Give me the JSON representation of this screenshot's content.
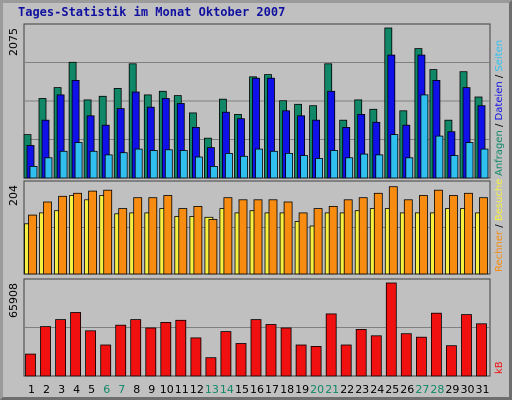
{
  "title": "Tages-Statistik im Monat Oktober 2007",
  "colors": {
    "background": "#c0c0c0",
    "anfragen": "#108868",
    "dateien": "#1010e8",
    "seiten": "#30c0f0",
    "besuche": "#f8f040",
    "rechner": "#f88c10",
    "kb": "#f01010",
    "weekday": "#000000",
    "weekend": "#108868"
  },
  "chart_data": [
    {
      "type": "bar",
      "panel": "top",
      "ymax_label": "2075",
      "ylim": [
        0,
        2075
      ],
      "side_labels": [
        {
          "text": "Anfragen",
          "color": "#108868"
        },
        {
          "text": " / ",
          "color": "#000000"
        },
        {
          "text": "Dateien",
          "color": "#1010e8"
        },
        {
          "text": " / ",
          "color": "#000000"
        },
        {
          "text": "Seiten",
          "color": "#30c0f0"
        }
      ],
      "categories": [
        "1",
        "2",
        "3",
        "4",
        "5",
        "6",
        "7",
        "8",
        "9",
        "10",
        "11",
        "12",
        "13",
        "14",
        "15",
        "16",
        "17",
        "18",
        "19",
        "20",
        "21",
        "22",
        "23",
        "24",
        "25",
        "26",
        "27",
        "28",
        "29",
        "30",
        "31"
      ],
      "series": [
        {
          "name": "Anfragen",
          "color": "#108868",
          "values": [
            600,
            1100,
            1250,
            1600,
            1080,
            1130,
            1240,
            1580,
            1150,
            1200,
            1140,
            900,
            550,
            1090,
            880,
            1400,
            1430,
            1070,
            1020,
            1000,
            1580,
            800,
            1080,
            950,
            2075,
            930,
            1790,
            1500,
            800,
            1470,
            1120
          ]
        },
        {
          "name": "Dateien",
          "color": "#1010e8",
          "values": [
            450,
            800,
            1150,
            1350,
            860,
            730,
            960,
            1190,
            980,
            1100,
            1030,
            700,
            420,
            910,
            820,
            1380,
            1380,
            930,
            860,
            800,
            1200,
            700,
            880,
            770,
            1700,
            730,
            1700,
            1350,
            640,
            1250,
            1000
          ]
        },
        {
          "name": "Seiten",
          "color": "#30c0f0",
          "values": [
            160,
            280,
            370,
            490,
            370,
            320,
            350,
            400,
            380,
            390,
            380,
            290,
            160,
            340,
            300,
            400,
            370,
            340,
            310,
            270,
            380,
            280,
            330,
            320,
            600,
            280,
            1150,
            580,
            310,
            490,
            400
          ]
        }
      ]
    },
    {
      "type": "bar",
      "panel": "middle",
      "ymax_label": "204",
      "ylim": [
        0,
        204
      ],
      "side_labels": [
        {
          "text": "Rechner",
          "color": "#f88c10"
        },
        {
          "text": " / ",
          "color": "#000000"
        },
        {
          "text": "Besuche",
          "color": "#f8f040"
        }
      ],
      "categories": [
        "1",
        "2",
        "3",
        "4",
        "5",
        "6",
        "7",
        "8",
        "9",
        "10",
        "11",
        "12",
        "13",
        "14",
        "15",
        "16",
        "17",
        "18",
        "19",
        "20",
        "21",
        "22",
        "23",
        "24",
        "25",
        "26",
        "27",
        "28",
        "29",
        "30",
        "31"
      ],
      "series": [
        {
          "name": "Besuche",
          "color": "#f8f040",
          "values": [
            115,
            140,
            145,
            180,
            170,
            180,
            138,
            140,
            140,
            150,
            132,
            132,
            130,
            150,
            140,
            145,
            140,
            140,
            120,
            110,
            140,
            140,
            145,
            150,
            150,
            140,
            140,
            140,
            150,
            150,
            140
          ]
        },
        {
          "name": "Rechner",
          "color": "#f88c10",
          "values": [
            135,
            165,
            178,
            185,
            190,
            192,
            150,
            175,
            175,
            180,
            150,
            155,
            125,
            175,
            170,
            170,
            170,
            165,
            140,
            150,
            155,
            170,
            175,
            185,
            200,
            170,
            180,
            192,
            180,
            185,
            175
          ]
        }
      ]
    },
    {
      "type": "bar",
      "panel": "bottom",
      "ymax_label": "65908",
      "ylim": [
        0,
        65908
      ],
      "side_labels": [
        {
          "text": "kB",
          "color": "#f01010"
        }
      ],
      "categories": [
        "1",
        "2",
        "3",
        "4",
        "5",
        "6",
        "7",
        "8",
        "9",
        "10",
        "11",
        "12",
        "13",
        "14",
        "15",
        "16",
        "17",
        "18",
        "19",
        "20",
        "21",
        "22",
        "23",
        "24",
        "25",
        "26",
        "27",
        "28",
        "29",
        "30",
        "31"
      ],
      "series": [
        {
          "name": "kB",
          "color": "#f01010",
          "values": [
            15500,
            35000,
            40000,
            45000,
            32000,
            22000,
            36000,
            40000,
            34000,
            38000,
            39500,
            27000,
            13000,
            31500,
            23000,
            40000,
            36500,
            34000,
            22000,
            21000,
            44000,
            22000,
            33000,
            28500,
            65908,
            30000,
            27500,
            44500,
            21500,
            43500,
            37000
          ]
        }
      ]
    }
  ],
  "days": [
    {
      "label": "1",
      "weekend": false
    },
    {
      "label": "2",
      "weekend": false
    },
    {
      "label": "3",
      "weekend": false
    },
    {
      "label": "4",
      "weekend": false
    },
    {
      "label": "5",
      "weekend": false
    },
    {
      "label": "6",
      "weekend": true
    },
    {
      "label": "7",
      "weekend": true
    },
    {
      "label": "8",
      "weekend": false
    },
    {
      "label": "9",
      "weekend": false
    },
    {
      "label": "10",
      "weekend": false
    },
    {
      "label": "11",
      "weekend": false
    },
    {
      "label": "12",
      "weekend": false
    },
    {
      "label": "13",
      "weekend": true
    },
    {
      "label": "14",
      "weekend": true
    },
    {
      "label": "15",
      "weekend": false
    },
    {
      "label": "16",
      "weekend": false
    },
    {
      "label": "17",
      "weekend": false
    },
    {
      "label": "18",
      "weekend": false
    },
    {
      "label": "19",
      "weekend": false
    },
    {
      "label": "20",
      "weekend": true
    },
    {
      "label": "21",
      "weekend": true
    },
    {
      "label": "22",
      "weekend": false
    },
    {
      "label": "23",
      "weekend": false
    },
    {
      "label": "24",
      "weekend": false
    },
    {
      "label": "25",
      "weekend": false
    },
    {
      "label": "26",
      "weekend": false
    },
    {
      "label": "27",
      "weekend": true
    },
    {
      "label": "28",
      "weekend": true
    },
    {
      "label": "29",
      "weekend": false
    },
    {
      "label": "30",
      "weekend": false
    },
    {
      "label": "31",
      "weekend": false
    }
  ]
}
